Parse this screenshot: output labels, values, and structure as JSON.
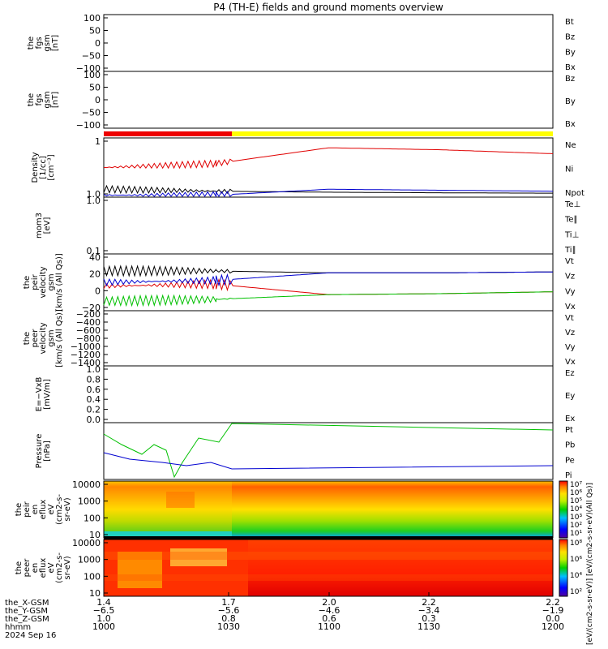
{
  "title": "P4 (TH-E) fields and ground moments overview",
  "date": "2024 Sep 16",
  "colors": {
    "black": "#000000",
    "red": "#e00000",
    "green": "#00c000",
    "blue": "#0000d0",
    "bar_red": "#ee0000",
    "bar_yellow": "#ffff00"
  },
  "panels": [
    {
      "id": "fgs",
      "ylabel": [
        "the",
        "fgs",
        "gsm",
        "[nT]"
      ],
      "ticks": [
        "100",
        "50",
        "0",
        "−50",
        "−100"
      ],
      "legend": [
        {
          "label": "Bt",
          "color": "#000000"
        },
        {
          "label": "Bz",
          "color": "#e00000"
        },
        {
          "label": "By",
          "color": "#00c000"
        },
        {
          "label": "Bx",
          "color": "#0000d0"
        }
      ]
    },
    {
      "id": "fgs2",
      "ylabel": [
        "the",
        "fgs",
        "gsm",
        "[nT]"
      ],
      "ticks": [
        "100",
        "50",
        "0",
        "−50",
        "−100"
      ],
      "legend": [
        {
          "label": "Bz",
          "color": "#e00000"
        },
        {
          "label": "By",
          "color": "#00c000"
        },
        {
          "label": "Bx",
          "color": "#0000d0"
        }
      ]
    },
    {
      "id": "density",
      "ylabel": [
        "Density",
        "[1/cc]",
        "[cm⁻³]"
      ],
      "ticks": [
        "1",
        "1.0"
      ],
      "legend": [
        {
          "label": "Ne",
          "color": "#e00000"
        },
        {
          "label": "Ni",
          "color": "#000000"
        },
        {
          "label": "Npot",
          "color": "#0000d0"
        }
      ]
    },
    {
      "id": "temp",
      "ylabel": [
        "mom3",
        "[eV]"
      ],
      "ticks": [
        "1.0",
        "0.1"
      ],
      "legend": [
        {
          "label": "Te⊥",
          "color": "#e00000"
        },
        {
          "label": "Te∥",
          "color": "#000000"
        },
        {
          "label": "Ti⊥",
          "color": "#0000d0"
        },
        {
          "label": "Ti∥",
          "color": "#00c000"
        }
      ]
    },
    {
      "id": "vi",
      "ylabel": [
        "the",
        "peir",
        "velocity",
        "gsm",
        "[km/s (All Qs)]"
      ],
      "ticks": [
        "40",
        "20",
        "0",
        "−20"
      ],
      "legend": [
        {
          "label": "Vt",
          "color": "#000000"
        },
        {
          "label": "Vz",
          "color": "#e00000"
        },
        {
          "label": "Vy",
          "color": "#00c000"
        },
        {
          "label": "Vx",
          "color": "#0000d0"
        }
      ]
    },
    {
      "id": "ve",
      "ylabel": [
        "the",
        "peer",
        "velocity",
        "gsm",
        "[km/s (All Qs)]"
      ],
      "ticks": [
        "−200",
        "−400",
        "−600",
        "−800",
        "−1000",
        "−1200",
        "−1400"
      ],
      "legend": [
        {
          "label": "Vt",
          "color": "#000000"
        },
        {
          "label": "Vz",
          "color": "#e00000"
        },
        {
          "label": "Vy",
          "color": "#00c000"
        },
        {
          "label": "Vx",
          "color": "#0000d0"
        }
      ]
    },
    {
      "id": "efield",
      "ylabel": [
        "E=−VxB",
        "[mV/m]"
      ],
      "ticks": [
        "1.0",
        "0.8",
        "0.6",
        "0.4",
        "0.2",
        "0.0"
      ],
      "legend": [
        {
          "label": "Ez",
          "color": "#e00000"
        },
        {
          "label": "Ey",
          "color": "#00c000"
        },
        {
          "label": "Ex",
          "color": "#0000d0"
        }
      ]
    },
    {
      "id": "pressure",
      "ylabel": [
        "Pressure",
        "[nPa]"
      ],
      "ticks": [],
      "legend": [
        {
          "label": "Pt",
          "color": "#000000"
        },
        {
          "label": "Pb",
          "color": "#e00000"
        },
        {
          "label": "Pe",
          "color": "#00c000"
        },
        {
          "label": "Pi",
          "color": "#0000d0"
        }
      ]
    },
    {
      "id": "ion_spec",
      "ylabel": [
        "the",
        "peir",
        "en",
        "eflux",
        "eV",
        "(cm2-s-",
        "sr-eV)"
      ],
      "ticks": [
        "10000",
        "1000",
        "100",
        "10"
      ],
      "legend": []
    },
    {
      "id": "elec_spec",
      "ylabel": [
        "the",
        "peer",
        "en",
        "eflux",
        "eV",
        "(cm2-s-",
        "sr-eV)"
      ],
      "ticks": [
        "10000",
        "1000",
        "100",
        "10"
      ],
      "legend": []
    }
  ],
  "colorbar": {
    "ticks_top": [
      "10⁷",
      "10⁶",
      "10⁵",
      "10⁴",
      "10³",
      "10²",
      "10¹"
    ],
    "ticks_bottom": [
      "10⁸",
      "10⁶",
      "10⁴",
      "10²"
    ],
    "label": "[eV/(cm2-s-sr-eV)] [eV/(cm2-s-sr-eV)(All Qs)]"
  },
  "xaxis": {
    "rows": [
      {
        "label": "the_X-GSM",
        "values": [
          "1.4",
          "1.7",
          "2.0",
          "2.2",
          "2.2"
        ]
      },
      {
        "label": "the_Y-GSM",
        "values": [
          "−6.5",
          "−5.6",
          "−4.6",
          "−3.4",
          "−1.9"
        ]
      },
      {
        "label": "the_Z-GSM",
        "values": [
          "1.0",
          "0.8",
          "0.6",
          "0.3",
          "0.0"
        ]
      },
      {
        "label": "hhmm",
        "values": [
          "1000",
          "1030",
          "1100",
          "1130",
          "1200"
        ]
      }
    ]
  },
  "chart_data": {
    "type": "line",
    "title": "P4 (TH-E) fields and ground moments overview",
    "x_time_hhmm": [
      "1000",
      "1030",
      "1100",
      "1130",
      "1200"
    ],
    "time_range": [
      "1000",
      "1200"
    ],
    "series": [
      {
        "name": "Ne",
        "panel": "density",
        "values": [
          2.0,
          2.2,
          3.0,
          2.9,
          2.7
        ]
      },
      {
        "name": "Ni",
        "panel": "density",
        "values": [
          0.9,
          0.8,
          0.75,
          0.72,
          0.7
        ]
      },
      {
        "name": "Npot",
        "panel": "density",
        "values": [
          0.6,
          0.6,
          0.9,
          0.85,
          0.8
        ]
      },
      {
        "name": "Vt",
        "panel": "vi",
        "values": [
          22,
          22,
          20,
          20,
          21
        ]
      },
      {
        "name": "Vz",
        "panel": "vi",
        "values": [
          6,
          8,
          -3,
          -2,
          0
        ]
      },
      {
        "name": "Vy",
        "panel": "vi",
        "values": [
          -10,
          -8,
          -3,
          -2,
          0
        ]
      },
      {
        "name": "Vx",
        "panel": "vi",
        "values": [
          10,
          12,
          20,
          20,
          21
        ]
      }
    ]
  }
}
